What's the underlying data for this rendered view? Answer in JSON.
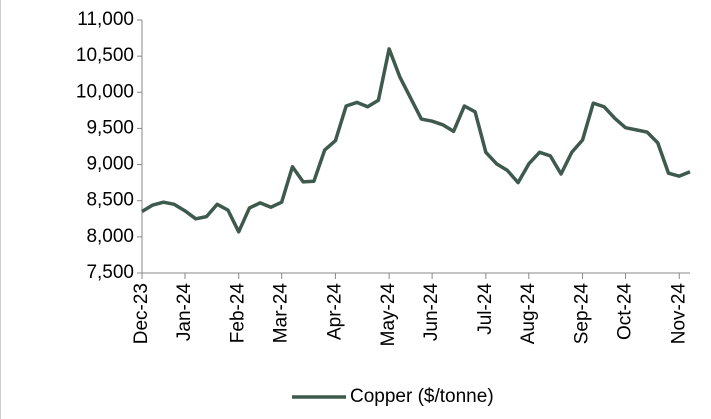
{
  "chart_data": {
    "type": "line",
    "categories": [
      "Dec-23",
      null,
      null,
      null,
      "Jan-24",
      null,
      null,
      null,
      null,
      "Feb-24",
      null,
      null,
      null,
      "Mar-24",
      null,
      null,
      null,
      null,
      "Apr-24",
      null,
      null,
      null,
      null,
      "May-24",
      null,
      null,
      null,
      "Jun-24",
      null,
      null,
      null,
      null,
      "Jul-24",
      null,
      null,
      null,
      "Aug-24",
      null,
      null,
      null,
      null,
      "Sep-24",
      null,
      null,
      null,
      "Oct-24",
      null,
      null,
      null,
      null,
      "Nov-24",
      null
    ],
    "series": [
      {
        "name": "Copper ($/tonne)",
        "color": "#3e5a4c",
        "values": [
          8350,
          8440,
          8480,
          8450,
          8360,
          8250,
          8280,
          8450,
          8370,
          8070,
          8400,
          8470,
          8410,
          8480,
          8970,
          8760,
          8770,
          9200,
          9330,
          9810,
          9860,
          9800,
          9890,
          10600,
          10210,
          9920,
          9630,
          9600,
          9550,
          9460,
          9810,
          9730,
          9170,
          9010,
          8920,
          8750,
          9010,
          9170,
          9120,
          8870,
          9170,
          9340,
          9850,
          9800,
          9640,
          9510,
          9480,
          9450,
          9300,
          8880,
          8840,
          8900
        ]
      }
    ],
    "ylim": [
      7500,
      11000
    ],
    "yticks": [
      {
        "value": 7500,
        "label": "7,500"
      },
      {
        "value": 8000,
        "label": "8,000"
      },
      {
        "value": 8500,
        "label": "8,500"
      },
      {
        "value": 9000,
        "label": "9,000"
      },
      {
        "value": 9500,
        "label": "9,500"
      },
      {
        "value": 10000,
        "label": "10,000"
      },
      {
        "value": 10500,
        "label": "10,500"
      },
      {
        "value": 11000,
        "label": "11,000"
      }
    ],
    "legend": "bottom",
    "grid": false
  }
}
